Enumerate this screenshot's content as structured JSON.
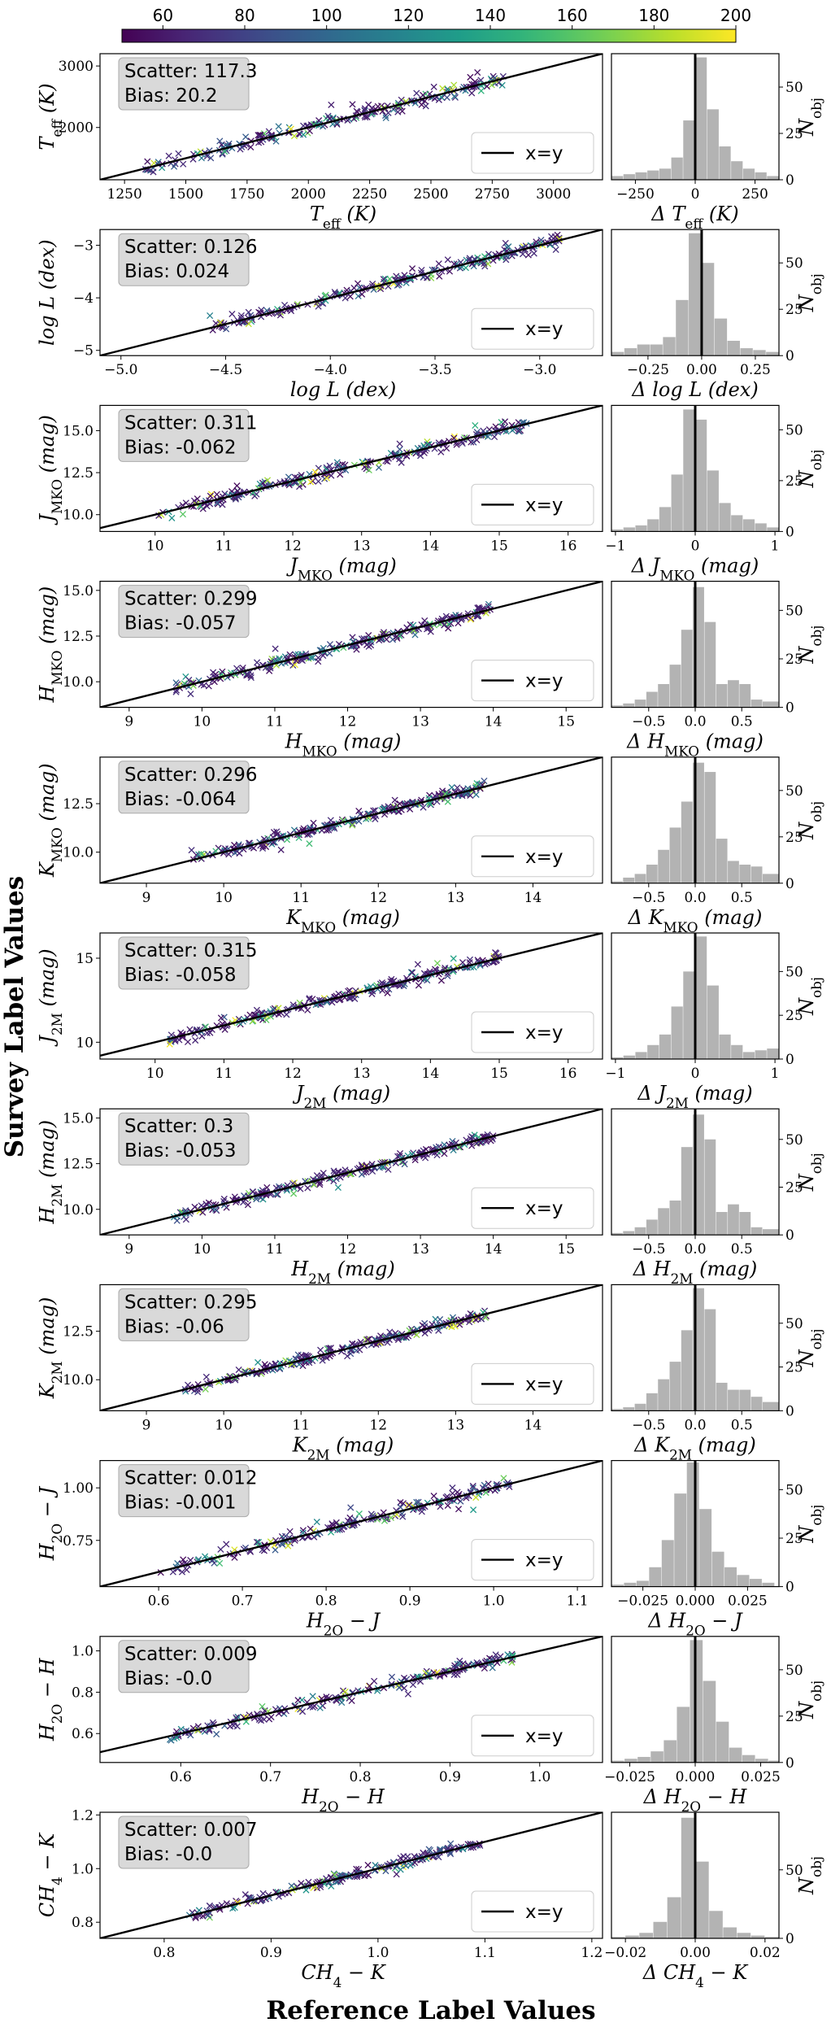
{
  "figure": {
    "ylabel_main": "Survey Label Values",
    "xlabel_main": "Reference Label Values",
    "colorbar": {
      "ticks": [
        60,
        80,
        100,
        120,
        140,
        160,
        180,
        200
      ],
      "range": [
        50,
        200
      ],
      "colormap": "viridis"
    },
    "legend_label": "x=y",
    "scatter_prefix": "Scatter: ",
    "bias_prefix": "Bias: ",
    "hist_ylabel": "N_obj",
    "colors": {
      "hist_fill": "#b3b3b3",
      "line": "#000000",
      "stat_box": "#d9d9d9"
    }
  },
  "chart_data": [
    {
      "type": "scatter",
      "id": "teff",
      "xlabel": "T_eff (K)",
      "ylabel": "T_eff (K)",
      "sub": "eff",
      "unit": "K",
      "xlim": [
        1150,
        3200
      ],
      "ylim": [
        1150,
        3200
      ],
      "xticks": [
        1250,
        1500,
        1750,
        2000,
        2250,
        2500,
        2750,
        3000
      ],
      "yticks": [
        2000,
        3000
      ],
      "scatter": "117.3",
      "bias": "20.2",
      "trend": [
        1300,
        2800
      ],
      "hist": {
        "type": "bar",
        "xlabel": "Δ T_eff (K)",
        "xlim": [
          -350,
          350
        ],
        "ylim": [
          0,
          68
        ],
        "xticks": [
          -250,
          0,
          250
        ],
        "yticks": [
          0,
          25,
          50
        ],
        "bins": [
          -350,
          -300,
          -250,
          -200,
          -150,
          -100,
          -50,
          0,
          50,
          100,
          150,
          200,
          250,
          300,
          350
        ],
        "counts": [
          2,
          3,
          4,
          5,
          6,
          12,
          32,
          66,
          38,
          18,
          10,
          6,
          4,
          2
        ]
      }
    },
    {
      "type": "scatter",
      "id": "logl",
      "xlabel": "log L (dex)",
      "ylabel": "log L (dex)",
      "sub": "",
      "unit": "dex",
      "xlim": [
        -5.1,
        -2.7
      ],
      "ylim": [
        -5.1,
        -2.7
      ],
      "xticks": [
        -5.0,
        -4.5,
        -4.0,
        -3.5,
        -3.0
      ],
      "yticks": [
        -5,
        -4,
        -3
      ],
      "scatter": "0.126",
      "bias": "0.024",
      "trend": [
        -4.6,
        -2.9
      ],
      "hist": {
        "type": "bar",
        "xlabel": "Δ log L (dex)",
        "xlim": [
          -0.42,
          0.36
        ],
        "ylim": [
          0,
          68
        ],
        "xticks": [
          -0.25,
          0.0,
          0.25
        ],
        "yticks": [
          0,
          25,
          50
        ],
        "bins": [
          -0.42,
          -0.36,
          -0.3,
          -0.24,
          -0.18,
          -0.12,
          -0.06,
          0.0,
          0.06,
          0.12,
          0.18,
          0.24,
          0.3,
          0.36
        ],
        "counts": [
          2,
          4,
          6,
          6,
          10,
          30,
          66,
          50,
          20,
          8,
          4,
          3,
          2
        ]
      }
    },
    {
      "type": "scatter",
      "id": "jmko",
      "xlabel": "J_MKO (mag)",
      "ylabel": "J_MKO (mag)",
      "sub": "MKO",
      "unit": "mag",
      "xlim": [
        9.2,
        16.5
      ],
      "ylim": [
        9.0,
        16.5
      ],
      "xticks": [
        10,
        11,
        12,
        13,
        14,
        15,
        16
      ],
      "yticks": [
        10.0,
        12.5,
        15.0
      ],
      "scatter": "0.311",
      "bias": "-0.062",
      "trend": [
        10.0,
        15.4
      ],
      "hist": {
        "type": "bar",
        "xlabel": "Δ J_MKO (mag)",
        "xlim": [
          -1.05,
          1.05
        ],
        "ylim": [
          0,
          62
        ],
        "xticks": [
          -1,
          0,
          1
        ],
        "yticks": [
          0,
          25,
          50
        ],
        "bins": [
          -1.05,
          -0.9,
          -0.75,
          -0.6,
          -0.45,
          -0.3,
          -0.15,
          0.0,
          0.15,
          0.3,
          0.45,
          0.6,
          0.75,
          0.9,
          1.05
        ],
        "counts": [
          1,
          2,
          3,
          6,
          12,
          28,
          60,
          55,
          30,
          14,
          8,
          6,
          4,
          2
        ]
      }
    },
    {
      "type": "scatter",
      "id": "hmko",
      "xlabel": "H_MKO (mag)",
      "ylabel": "H_MKO (mag)",
      "sub": "MKO",
      "unit": "mag",
      "xlim": [
        8.6,
        15.5
      ],
      "ylim": [
        8.6,
        15.5
      ],
      "xticks": [
        9,
        10,
        11,
        12,
        13,
        14,
        15
      ],
      "yticks": [
        10.0,
        12.5,
        15.0
      ],
      "scatter": "0.299",
      "bias": "-0.057",
      "trend": [
        9.6,
        14.0
      ],
      "hist": {
        "type": "bar",
        "xlabel": "Δ H_MKO (mag)",
        "xlim": [
          -0.9,
          0.9
        ],
        "ylim": [
          0,
          65
        ],
        "xticks": [
          -0.5,
          0.0,
          0.5
        ],
        "yticks": [
          0,
          25,
          50
        ],
        "bins": [
          -0.9,
          -0.775,
          -0.65,
          -0.525,
          -0.4,
          -0.275,
          -0.15,
          -0.025,
          0.1,
          0.225,
          0.35,
          0.475,
          0.6,
          0.725,
          0.9
        ],
        "counts": [
          1,
          2,
          4,
          8,
          12,
          22,
          40,
          62,
          44,
          12,
          14,
          12,
          4,
          3
        ]
      }
    },
    {
      "type": "scatter",
      "id": "kmko",
      "xlabel": "K_MKO (mag)",
      "ylabel": "K_MKO (mag)",
      "sub": "MKO",
      "unit": "mag",
      "xlim": [
        8.4,
        14.9
      ],
      "ylim": [
        8.4,
        14.9
      ],
      "xticks": [
        9,
        10,
        11,
        12,
        13,
        14
      ],
      "yticks": [
        10.0,
        12.5
      ],
      "scatter": "0.296",
      "bias": "-0.064",
      "trend": [
        9.5,
        13.4
      ],
      "hist": {
        "type": "bar",
        "xlabel": "Δ K_MKO (mag)",
        "xlim": [
          -0.9,
          0.9
        ],
        "ylim": [
          0,
          68
        ],
        "xticks": [
          -0.5,
          0.0,
          0.5
        ],
        "yticks": [
          0,
          25,
          50
        ],
        "bins": [
          -0.9,
          -0.775,
          -0.65,
          -0.525,
          -0.4,
          -0.275,
          -0.15,
          -0.025,
          0.1,
          0.225,
          0.35,
          0.475,
          0.6,
          0.725,
          0.9
        ],
        "counts": [
          1,
          3,
          5,
          10,
          18,
          30,
          44,
          65,
          60,
          24,
          12,
          10,
          9,
          5
        ]
      }
    },
    {
      "type": "scatter",
      "id": "j2m",
      "xlabel": "J_2M (mag)",
      "ylabel": "J_2M (mag)",
      "sub": "2M",
      "unit": "mag",
      "xlim": [
        9.2,
        16.5
      ],
      "ylim": [
        9.0,
        16.5
      ],
      "xticks": [
        10,
        11,
        12,
        13,
        14,
        15,
        16
      ],
      "yticks": [
        10,
        15
      ],
      "scatter": "0.315",
      "bias": "-0.058",
      "trend": [
        10.2,
        15.0
      ],
      "hist": {
        "type": "bar",
        "xlabel": "Δ J_2M (mag)",
        "xlim": [
          -1.05,
          1.05
        ],
        "ylim": [
          0,
          72
        ],
        "xticks": [
          -1,
          0,
          1
        ],
        "yticks": [
          0,
          25,
          50
        ],
        "bins": [
          -1.05,
          -0.9,
          -0.75,
          -0.6,
          -0.45,
          -0.3,
          -0.15,
          0.0,
          0.15,
          0.3,
          0.45,
          0.6,
          0.75,
          0.9,
          1.05
        ],
        "counts": [
          1,
          2,
          4,
          8,
          14,
          30,
          50,
          70,
          42,
          14,
          8,
          4,
          5,
          6
        ]
      }
    },
    {
      "type": "scatter",
      "id": "h2m",
      "xlabel": "H_2M (mag)",
      "ylabel": "H_2M (mag)",
      "sub": "2M",
      "unit": "mag",
      "xlim": [
        8.6,
        15.5
      ],
      "ylim": [
        8.6,
        15.5
      ],
      "xticks": [
        9,
        10,
        11,
        12,
        13,
        14,
        15
      ],
      "yticks": [
        10.0,
        12.5,
        15.0
      ],
      "scatter": "0.3",
      "bias": "-0.053",
      "trend": [
        9.6,
        14.0
      ],
      "hist": {
        "type": "bar",
        "xlabel": "Δ H_2M (mag)",
        "xlim": [
          -0.9,
          0.9
        ],
        "ylim": [
          0,
          66
        ],
        "xticks": [
          -0.5,
          0.0,
          0.5
        ],
        "yticks": [
          0,
          25,
          50
        ],
        "bins": [
          -0.9,
          -0.775,
          -0.65,
          -0.525,
          -0.4,
          -0.275,
          -0.15,
          -0.025,
          0.1,
          0.225,
          0.35,
          0.475,
          0.6,
          0.725,
          0.9
        ],
        "counts": [
          1,
          2,
          4,
          8,
          14,
          18,
          46,
          63,
          50,
          12,
          16,
          12,
          4,
          3
        ]
      }
    },
    {
      "type": "scatter",
      "id": "k2m",
      "xlabel": "K_2M (mag)",
      "ylabel": "K_2M (mag)",
      "sub": "2M",
      "unit": "mag",
      "xlim": [
        8.4,
        14.9
      ],
      "ylim": [
        8.4,
        14.9
      ],
      "xticks": [
        9,
        10,
        11,
        12,
        13,
        14
      ],
      "yticks": [
        10.0,
        12.5
      ],
      "scatter": "0.295",
      "bias": "-0.06",
      "trend": [
        9.5,
        13.4
      ],
      "hist": {
        "type": "bar",
        "xlabel": "Δ K_2M (mag)",
        "xlim": [
          -0.9,
          0.9
        ],
        "ylim": [
          0,
          72
        ],
        "xticks": [
          -0.5,
          0.0,
          0.5
        ],
        "yticks": [
          0,
          25,
          50
        ],
        "bins": [
          -0.9,
          -0.775,
          -0.65,
          -0.525,
          -0.4,
          -0.275,
          -0.15,
          -0.025,
          0.1,
          0.225,
          0.35,
          0.475,
          0.6,
          0.725,
          0.9
        ],
        "counts": [
          1,
          2,
          4,
          10,
          18,
          28,
          46,
          70,
          58,
          16,
          12,
          12,
          8,
          5
        ]
      }
    },
    {
      "type": "scatter",
      "id": "h2oj",
      "xlabel": "H_2O − J",
      "ylabel": "H_2O − J",
      "sub": "",
      "unit": "",
      "xlim": [
        0.53,
        1.13
      ],
      "ylim": [
        0.53,
        1.13
      ],
      "xticks": [
        0.6,
        0.7,
        0.8,
        0.9,
        1.0,
        1.1
      ],
      "yticks": [
        0.75,
        1.0
      ],
      "scatter": "0.012",
      "bias": "-0.001",
      "trend": [
        0.6,
        1.02
      ],
      "hist": {
        "type": "bar",
        "xlabel": "Δ H_2O − J",
        "xlim": [
          -0.04,
          0.04
        ],
        "ylim": [
          0,
          65
        ],
        "xticks": [
          -0.025,
          0.0,
          0.025
        ],
        "yticks": [
          0,
          25,
          50
        ],
        "bins": [
          -0.04,
          -0.034,
          -0.028,
          -0.022,
          -0.016,
          -0.01,
          -0.004,
          0.002,
          0.008,
          0.014,
          0.02,
          0.026,
          0.032,
          0.038
        ],
        "counts": [
          1,
          2,
          3,
          10,
          24,
          48,
          64,
          40,
          18,
          10,
          6,
          4,
          2
        ]
      }
    },
    {
      "type": "scatter",
      "id": "h2oh",
      "xlabel": "H_2O − H",
      "ylabel": "H_2O − H",
      "sub": "",
      "unit": "",
      "xlim": [
        0.51,
        1.07
      ],
      "ylim": [
        0.46,
        1.07
      ],
      "xticks": [
        0.6,
        0.7,
        0.8,
        0.9,
        1.0
      ],
      "yticks": [
        0.6,
        0.8,
        1.0
      ],
      "scatter": "0.009",
      "bias": "-0.0",
      "trend": [
        0.58,
        0.97
      ],
      "hist": {
        "type": "bar",
        "xlabel": "Δ H_2O − H",
        "xlim": [
          -0.032,
          0.032
        ],
        "ylim": [
          0,
          68
        ],
        "xticks": [
          -0.025,
          0.0,
          0.025
        ],
        "yticks": [
          0,
          25,
          50
        ],
        "bins": [
          -0.032,
          -0.027,
          -0.022,
          -0.017,
          -0.012,
          -0.007,
          -0.002,
          0.003,
          0.008,
          0.013,
          0.018,
          0.023,
          0.028,
          0.032
        ],
        "counts": [
          1,
          2,
          3,
          6,
          12,
          30,
          66,
          44,
          22,
          8,
          4,
          2,
          1
        ]
      }
    },
    {
      "type": "scatter",
      "id": "ch4k",
      "xlabel": "CH_4 − K",
      "ylabel": "CH_4 − K",
      "sub": "",
      "unit": "",
      "xlim": [
        0.74,
        1.21
      ],
      "ylim": [
        0.74,
        1.21
      ],
      "xticks": [
        0.8,
        0.9,
        1.0,
        1.1,
        1.2
      ],
      "yticks": [
        0.8,
        1.0,
        1.2
      ],
      "scatter": "0.007",
      "bias": "-0.0",
      "trend": [
        0.82,
        1.1
      ],
      "hist": {
        "type": "bar",
        "xlabel": "Δ CH_4 − K",
        "xlim": [
          -0.024,
          0.024
        ],
        "ylim": [
          0,
          92
        ],
        "xticks": [
          -0.02,
          0.0,
          0.02
        ],
        "yticks": [
          0,
          50
        ],
        "bins": [
          -0.024,
          -0.02,
          -0.016,
          -0.012,
          -0.008,
          -0.004,
          0.0,
          0.004,
          0.008,
          0.012,
          0.016,
          0.02,
          0.024
        ],
        "counts": [
          1,
          2,
          4,
          12,
          30,
          88,
          56,
          20,
          8,
          4,
          2,
          1
        ]
      }
    }
  ]
}
